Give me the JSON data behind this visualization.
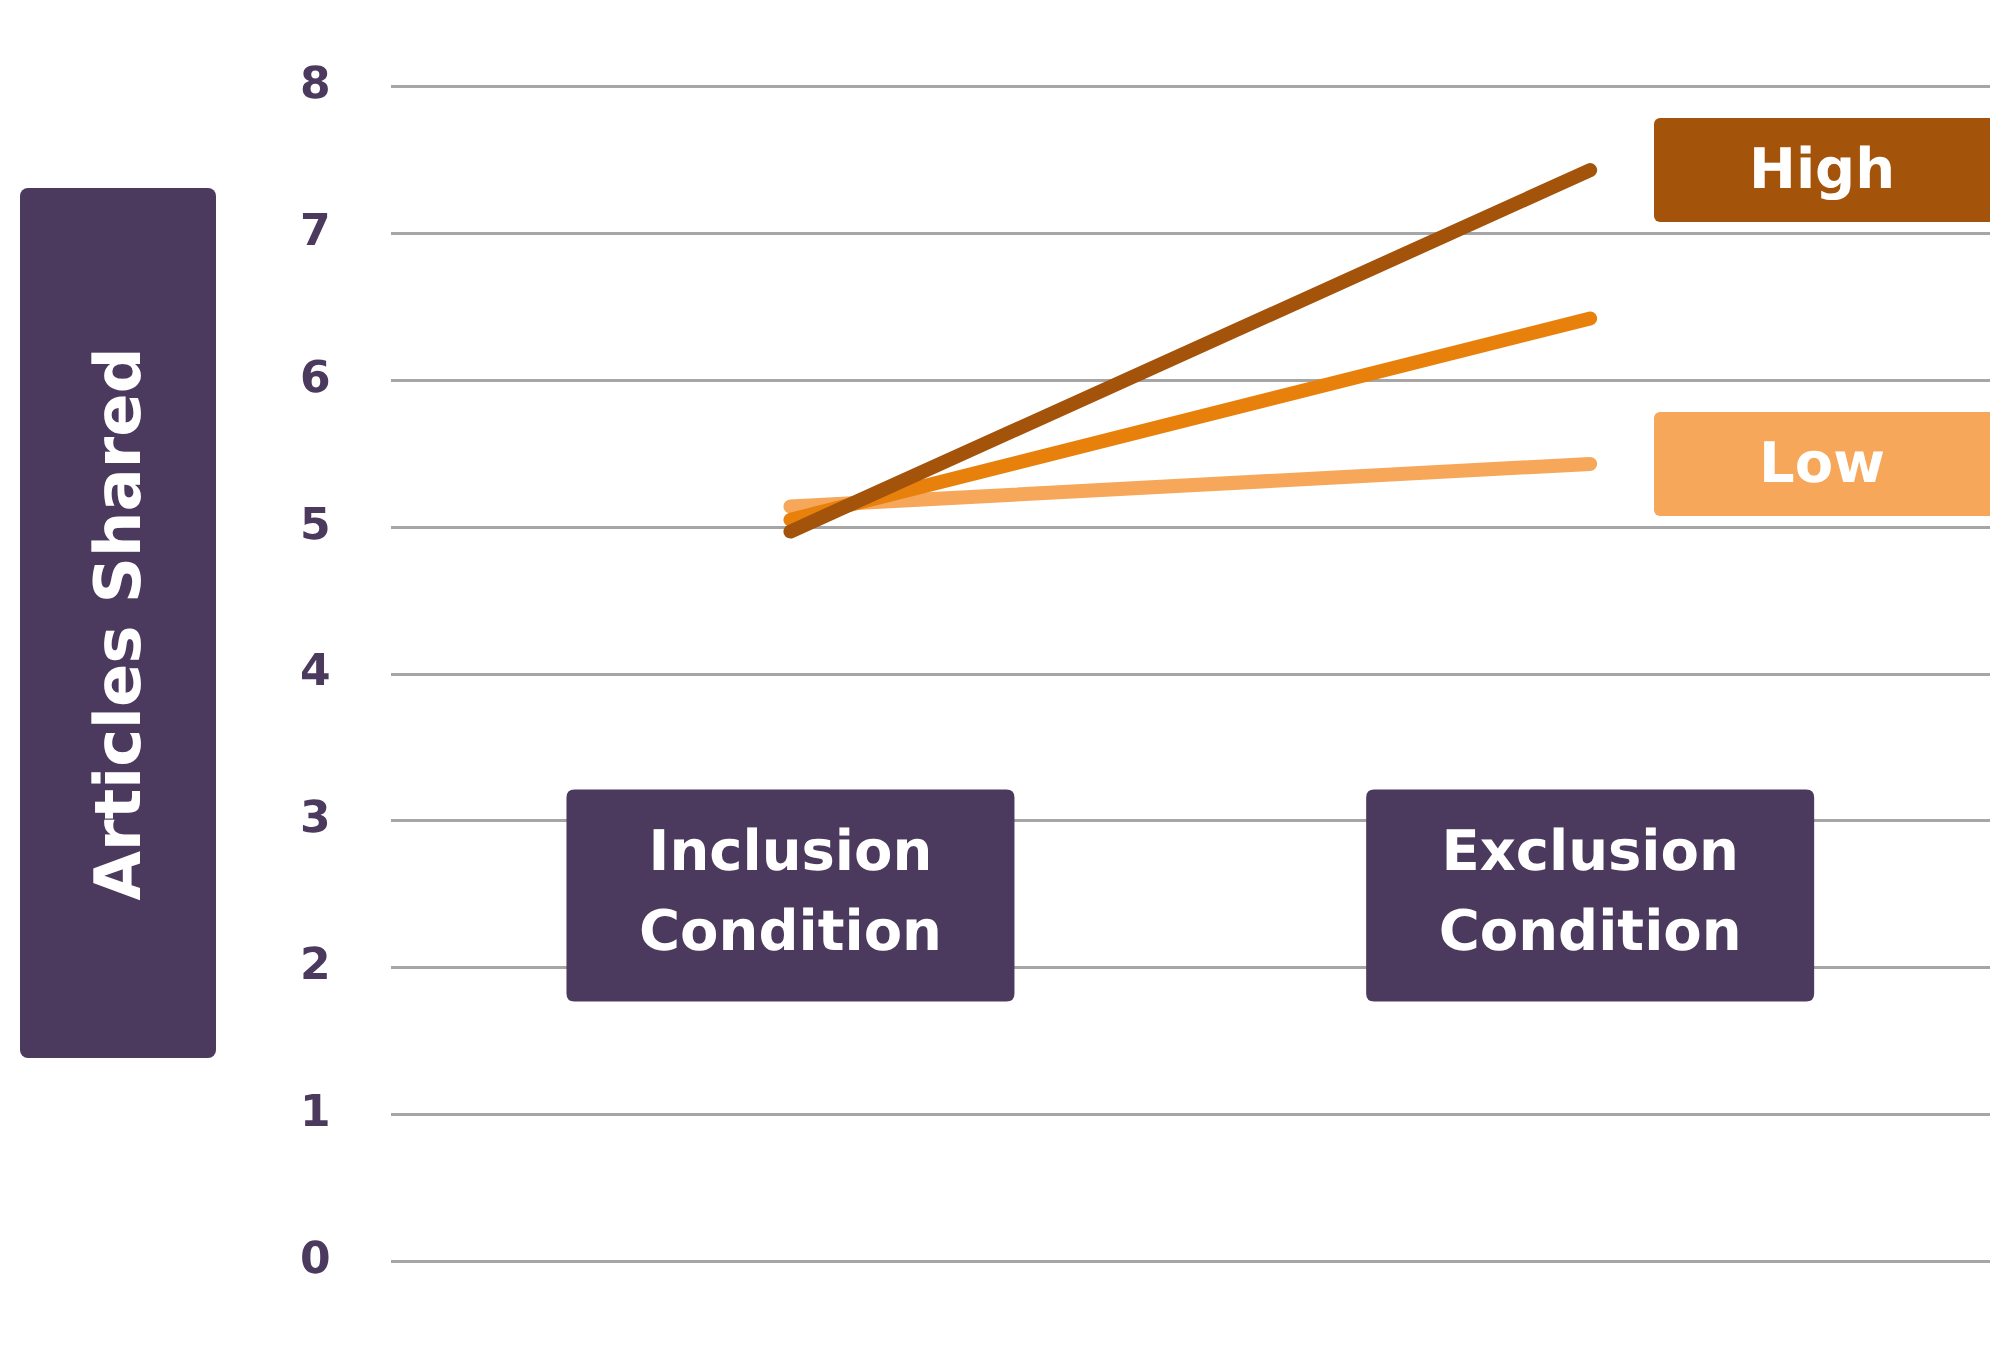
{
  "chart_data": {
    "type": "line",
    "ylabel": "Articles Shared",
    "categories": [
      "Inclusion Condition",
      "Exclusion Condition"
    ],
    "series": [
      {
        "name": "High",
        "color": "#a3540a",
        "values": [
          4.97,
          7.43
        ]
      },
      {
        "color": "#e8800c",
        "values": [
          5.05,
          6.42
        ]
      },
      {
        "name": "Low",
        "color": "#f6a75a",
        "values": [
          5.14,
          5.43
        ]
      }
    ],
    "ylim": [
      0,
      8
    ],
    "yticks": [
      0,
      1,
      2,
      3,
      4,
      5,
      6,
      7,
      8
    ],
    "grid": "y",
    "legend": "right",
    "marker": "none",
    "line_style": "solid"
  }
}
